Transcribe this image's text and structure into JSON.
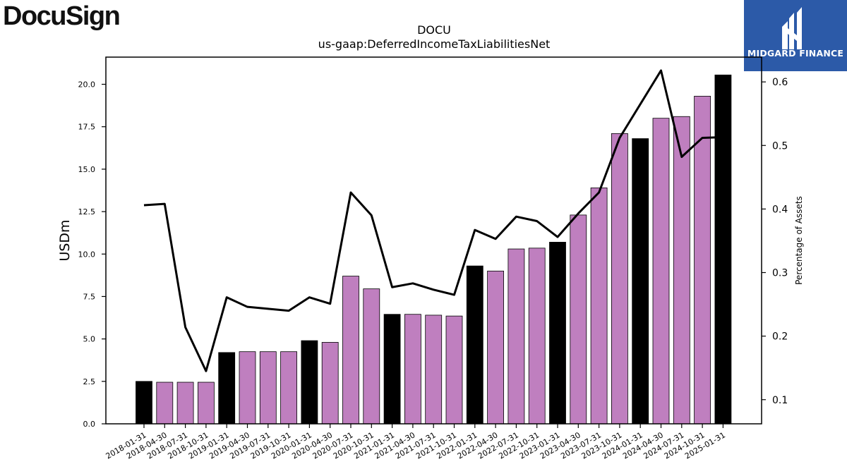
{
  "logos": {
    "left": "DocuSign",
    "right": "MIDGARD FINANCE"
  },
  "chart_data": {
    "type": "bar",
    "title": "DOCU",
    "subtitle": "us-gaap:DeferredIncomeTaxLiabilitiesNet",
    "ylabel": "USDm",
    "y2label": "Percentage of Assets",
    "ylim": [
      0,
      21.6
    ],
    "y2lim": [
      0.062,
      0.639
    ],
    "yticks": [
      "0.0",
      "2.5",
      "5.0",
      "7.5",
      "10.0",
      "12.5",
      "15.0",
      "17.5",
      "20.0"
    ],
    "y2ticks": [
      "0.1",
      "0.2",
      "0.3",
      "0.4",
      "0.5",
      "0.6"
    ],
    "colors": {
      "q4_bar": "#000000",
      "other_bar": "#bf7fbf",
      "line": "#000000"
    },
    "categories": [
      "2018-01-31",
      "2018-04-30",
      "2018-07-31",
      "2018-10-31",
      "2019-01-31",
      "2019-04-30",
      "2019-07-31",
      "2019-10-31",
      "2020-01-31",
      "2020-04-30",
      "2020-07-31",
      "2020-10-31",
      "2021-01-31",
      "2021-04-30",
      "2021-07-31",
      "2021-10-31",
      "2022-01-31",
      "2022-04-30",
      "2022-07-31",
      "2022-10-31",
      "2023-01-31",
      "2023-04-30",
      "2023-07-31",
      "2023-10-31",
      "2024-01-31",
      "2024-04-30",
      "2024-07-31",
      "2024-10-31",
      "2025-01-31"
    ],
    "series": [
      {
        "kind": "bar",
        "values": [
          2.5,
          2.45,
          2.45,
          2.45,
          4.2,
          4.25,
          4.25,
          4.25,
          4.9,
          4.8,
          8.7,
          7.95,
          6.45,
          6.45,
          6.4,
          6.35,
          9.3,
          9.0,
          10.3,
          10.35,
          10.7,
          12.3,
          13.9,
          17.1,
          16.8,
          18.0,
          18.1,
          19.3,
          20.55
        ]
      },
      {
        "kind": "line",
        "axis": "right",
        "values": [
          0.406,
          0.408,
          0.214,
          0.145,
          0.261,
          0.246,
          0.243,
          0.24,
          0.261,
          0.251,
          0.426,
          0.39,
          0.277,
          0.283,
          0.273,
          0.265,
          0.367,
          0.353,
          0.388,
          0.381,
          0.356,
          0.393,
          0.426,
          0.512,
          0.565,
          0.618,
          0.482,
          0.512,
          0.513
        ]
      }
    ]
  }
}
